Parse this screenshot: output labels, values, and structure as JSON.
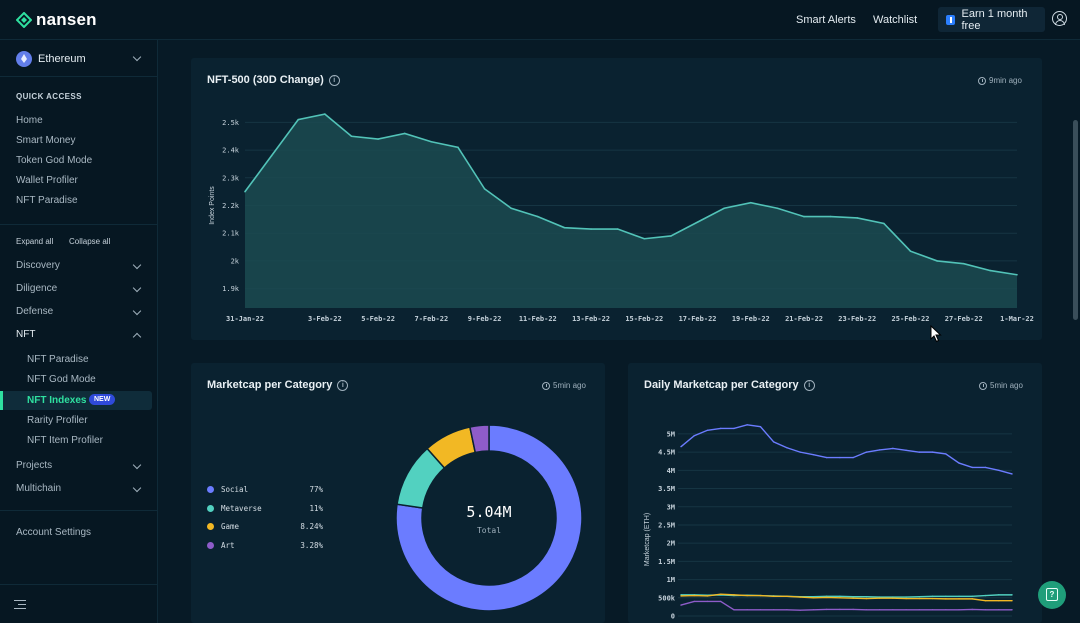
{
  "topbar": {
    "logo_text": "nansen",
    "nav": [
      "Smart Alerts",
      "Watchlist"
    ],
    "earn_label": "Earn 1 month free"
  },
  "sidebar": {
    "chain": "Ethereum",
    "quick_access_heading": "QUICK ACCESS",
    "quick_access": [
      "Home",
      "Smart Money",
      "Token God Mode",
      "Wallet Profiler",
      "NFT Paradise"
    ],
    "expand_all": "Expand all",
    "collapse_all": "Collapse all",
    "groups": [
      "Discovery",
      "Diligence",
      "Defense",
      "NFT"
    ],
    "nft_items": [
      "NFT Paradise",
      "NFT God Mode",
      "NFT Indexes",
      "Rarity Profiler",
      "NFT Item Profiler"
    ],
    "new_badge": "NEW",
    "groups_after": [
      "Projects",
      "Multichain"
    ],
    "account_settings": "Account Settings"
  },
  "panels": {
    "nft500": {
      "title": "NFT-500 (30D Change)",
      "updated": "9min ago"
    },
    "marketcap": {
      "title": "Marketcap per Category",
      "updated": "5min ago",
      "total_value": "5.04M",
      "total_label": "Total"
    },
    "daily": {
      "title": "Daily Marketcap per Category",
      "updated": "5min ago"
    }
  },
  "colors": {
    "accent": "#2fe0a0",
    "line": "#52c3b8",
    "social": "#6b7cff",
    "metaverse": "#52d1c0",
    "game": "#f2b824",
    "art": "#8e5cc9"
  },
  "chart_data": [
    {
      "type": "area",
      "title": "NFT-500 (30D Change)",
      "ylabel": "Index Points",
      "ylim": [
        1830,
        2570
      ],
      "yticks": [
        "2.5k",
        "2.4k",
        "2.3k",
        "2.2k",
        "2.1k",
        "2k",
        "1.9k"
      ],
      "xticks": [
        "31-Jan-22",
        "3-Feb-22",
        "5-Feb-22",
        "7-Feb-22",
        "9-Feb-22",
        "11-Feb-22",
        "13-Feb-22",
        "15-Feb-22",
        "17-Feb-22",
        "19-Feb-22",
        "21-Feb-22",
        "23-Feb-22",
        "25-Feb-22",
        "27-Feb-22",
        "1-Mar-22"
      ],
      "x": [
        "31-Jan-22",
        "1-Feb-22",
        "2-Feb-22",
        "3-Feb-22",
        "4-Feb-22",
        "5-Feb-22",
        "6-Feb-22",
        "7-Feb-22",
        "8-Feb-22",
        "9-Feb-22",
        "10-Feb-22",
        "11-Feb-22",
        "12-Feb-22",
        "13-Feb-22",
        "14-Feb-22",
        "15-Feb-22",
        "16-Feb-22",
        "17-Feb-22",
        "18-Feb-22",
        "19-Feb-22",
        "20-Feb-22",
        "21-Feb-22",
        "22-Feb-22",
        "23-Feb-22",
        "24-Feb-22",
        "25-Feb-22",
        "26-Feb-22",
        "27-Feb-22",
        "28-Feb-22",
        "1-Mar-22"
      ],
      "values": [
        2250,
        2380,
        2510,
        2530,
        2450,
        2440,
        2460,
        2430,
        2410,
        2260,
        2190,
        2160,
        2120,
        2115,
        2115,
        2080,
        2090,
        2140,
        2190,
        2210,
        2190,
        2160,
        2160,
        2155,
        2135,
        2035,
        2000,
        1990,
        1965,
        1950
      ]
    },
    {
      "type": "pie",
      "title": "Marketcap per Category",
      "categories": [
        "Social",
        "Metaverse",
        "Game",
        "Art"
      ],
      "values": [
        77,
        11,
        8.24,
        3.28
      ],
      "labels": [
        "77%",
        "11%",
        "8.24%",
        "3.28%"
      ]
    },
    {
      "type": "line",
      "title": "Daily Marketcap per Category",
      "ylabel": "Marketcap (ETH)",
      "ylim": [
        0,
        5300000
      ],
      "yticks": [
        "5M",
        "4.5M",
        "4M",
        "3.5M",
        "3M",
        "2.5M",
        "2M",
        "1.5M",
        "1M",
        "500k",
        "0"
      ],
      "series": [
        {
          "name": "Social",
          "values": [
            4650000,
            4950000,
            5100000,
            5150000,
            5150000,
            5250000,
            5200000,
            4780000,
            4620000,
            4500000,
            4430000,
            4350000,
            4350000,
            4350000,
            4500000,
            4560000,
            4600000,
            4550000,
            4500000,
            4500000,
            4450000,
            4200000,
            4080000,
            4080000,
            4000000,
            3900000
          ]
        },
        {
          "name": "Metaverse",
          "values": [
            580000,
            580000,
            570000,
            580000,
            560000,
            570000,
            560000,
            550000,
            540000,
            530000,
            530000,
            540000,
            540000,
            530000,
            530000,
            520000,
            520000,
            520000,
            530000,
            540000,
            540000,
            540000,
            540000,
            560000,
            580000,
            580000
          ]
        },
        {
          "name": "Game",
          "values": [
            550000,
            560000,
            550000,
            600000,
            580000,
            560000,
            560000,
            540000,
            540000,
            520000,
            500000,
            510000,
            500000,
            490000,
            480000,
            490000,
            490000,
            480000,
            480000,
            480000,
            470000,
            470000,
            470000,
            420000,
            420000,
            420000
          ]
        },
        {
          "name": "Art",
          "values": [
            300000,
            400000,
            400000,
            400000,
            170000,
            170000,
            170000,
            170000,
            170000,
            160000,
            170000,
            180000,
            180000,
            180000,
            170000,
            170000,
            170000,
            170000,
            170000,
            170000,
            170000,
            170000,
            180000,
            170000,
            170000,
            170000
          ]
        }
      ]
    }
  ]
}
